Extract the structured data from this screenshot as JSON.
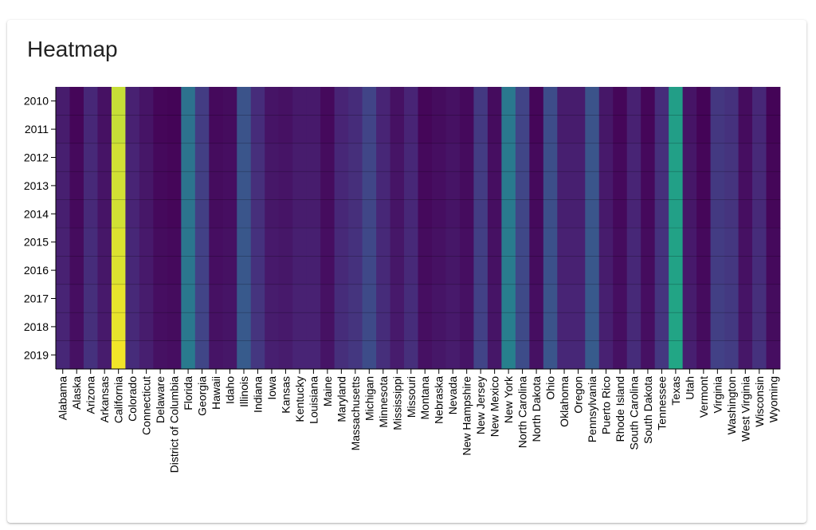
{
  "card": {
    "title": "Heatmap"
  },
  "chart_data": {
    "type": "heatmap",
    "title": "Heatmap",
    "colorscale": "viridis",
    "color_domain": [
      0,
      1
    ],
    "y": [
      "2010",
      "2011",
      "2012",
      "2013",
      "2014",
      "2015",
      "2016",
      "2017",
      "2018",
      "2019"
    ],
    "x": [
      "Alabama",
      "Alaska",
      "Arizona",
      "Arkansas",
      "California",
      "Colorado",
      "Connecticut",
      "Delaware",
      "District of Columbia",
      "Florida",
      "Georgia",
      "Hawaii",
      "Idaho",
      "Illinois",
      "Indiana",
      "Iowa",
      "Kansas",
      "Kentucky",
      "Louisiana",
      "Maine",
      "Maryland",
      "Massachusetts",
      "Michigan",
      "Minnesota",
      "Mississippi",
      "Missouri",
      "Montana",
      "Nebraska",
      "Nevada",
      "New Hampshire",
      "New Jersey",
      "New Mexico",
      "New York",
      "North Carolina",
      "North Dakota",
      "Ohio",
      "Oklahoma",
      "Oregon",
      "Pennsylvania",
      "Puerto Rico",
      "Rhode Island",
      "South Carolina",
      "South Dakota",
      "Tennessee",
      "Texas",
      "Utah",
      "Vermont",
      "Virginia",
      "Washington",
      "West Virginia",
      "Wisconsin",
      "Wyoming"
    ],
    "values": [
      0.1,
      0.02,
      0.14,
      0.06,
      0.95,
      0.12,
      0.07,
      0.02,
      0.01,
      0.47,
      0.22,
      0.03,
      0.04,
      0.32,
      0.16,
      0.07,
      0.06,
      0.09,
      0.09,
      0.03,
      0.13,
      0.16,
      0.25,
      0.13,
      0.06,
      0.13,
      0.02,
      0.04,
      0.06,
      0.03,
      0.21,
      0.04,
      0.5,
      0.25,
      0.02,
      0.29,
      0.1,
      0.1,
      0.32,
      0.08,
      0.02,
      0.12,
      0.02,
      0.16,
      0.7,
      0.07,
      0.01,
      0.2,
      0.18,
      0.04,
      0.14,
      0.01
    ],
    "row_variation": [
      0.0,
      0.0,
      0.01,
      0.01,
      0.01,
      0.02,
      0.02,
      0.03,
      0.03,
      0.04
    ]
  }
}
